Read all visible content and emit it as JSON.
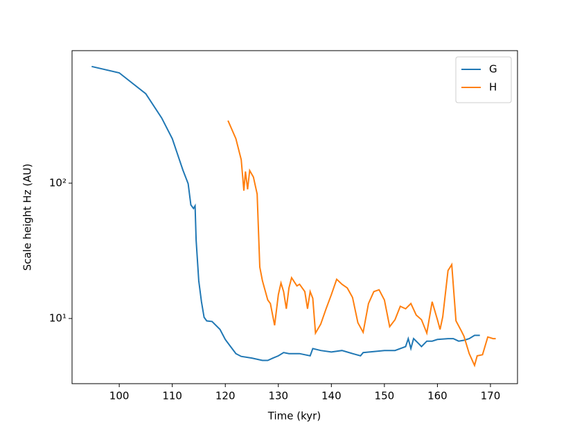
{
  "chart_data": {
    "type": "line",
    "xlabel": "Time (kyr)",
    "ylabel": "Scale height Hz (AU)",
    "xlim": [
      91.1,
      175.1
    ],
    "xticks": [
      100,
      110,
      120,
      130,
      140,
      150,
      160,
      170
    ],
    "ylim": [
      3.3,
      953
    ],
    "log_y": true,
    "yticks": [
      {
        "value": 10,
        "label": "10¹"
      },
      {
        "value": 100,
        "label": "10²"
      }
    ],
    "legend": "upper right",
    "series": [
      {
        "name": "G",
        "color": "#1f77b4",
        "x": [
          94.8,
          100,
          105,
          108,
          110,
          112,
          113,
          113.5,
          114,
          114.3,
          114.5,
          115,
          115.5,
          116,
          116.5,
          117.5,
          119,
          120,
          121,
          122,
          123,
          125,
          127,
          128,
          129,
          130,
          131,
          132,
          134,
          136,
          136.5,
          138,
          140,
          142,
          144,
          145.5,
          146,
          148,
          150,
          152,
          154,
          154.5,
          155,
          155.5,
          156.5,
          157,
          158,
          159,
          160,
          162,
          163,
          164,
          165,
          166,
          167,
          168
        ],
        "values": [
          728,
          653,
          458,
          303,
          213,
          125,
          99,
          69,
          65,
          68,
          38,
          19,
          13.3,
          10.2,
          9.6,
          9.5,
          8.3,
          7.0,
          6.2,
          5.5,
          5.25,
          5.1,
          4.9,
          4.9,
          5.1,
          5.3,
          5.6,
          5.5,
          5.5,
          5.3,
          6.0,
          5.8,
          5.65,
          5.8,
          5.5,
          5.3,
          5.6,
          5.7,
          5.8,
          5.8,
          6.2,
          7.1,
          6.0,
          7.1,
          6.5,
          6.2,
          6.8,
          6.8,
          7.0,
          7.1,
          7.1,
          6.8,
          6.9,
          7.1,
          7.5,
          7.5
        ]
      },
      {
        "name": "H",
        "color": "#ff7f0e",
        "x": [
          120.5,
          122,
          123,
          123.5,
          123.8,
          124.2,
          124.6,
          125.3,
          126,
          126.5,
          127,
          128,
          128.5,
          129.3,
          130,
          130.5,
          131,
          131.5,
          132,
          132.5,
          133.5,
          134,
          135,
          135.5,
          136,
          136.5,
          137,
          138,
          139,
          140,
          141,
          142,
          143,
          144,
          145,
          146,
          147,
          148,
          149,
          150,
          151,
          152,
          153,
          154,
          155,
          156,
          157,
          158,
          159,
          160,
          160.5,
          161,
          162,
          162.7,
          163.5,
          164.5,
          165,
          166,
          167,
          167.5,
          168.5,
          169.5,
          170.5,
          171
        ],
        "values": [
          290,
          213,
          149,
          88,
          122,
          90,
          124,
          111,
          83,
          24,
          19.0,
          13.7,
          12.9,
          8.9,
          15.0,
          18.3,
          15.8,
          11.8,
          16.8,
          20,
          17.4,
          17.9,
          15.8,
          11.8,
          15.8,
          14.1,
          7.8,
          9.1,
          11.8,
          15.0,
          19.5,
          17.9,
          16.8,
          14.3,
          9.3,
          7.9,
          12.9,
          15.8,
          16.3,
          13.7,
          8.7,
          9.8,
          12.3,
          11.8,
          12.9,
          10.6,
          9.8,
          7.8,
          13.3,
          9.8,
          8.3,
          10.3,
          22.6,
          25,
          9.6,
          8.1,
          7.4,
          5.5,
          4.5,
          5.3,
          5.4,
          7.3,
          7.1,
          7.1
        ]
      }
    ]
  }
}
